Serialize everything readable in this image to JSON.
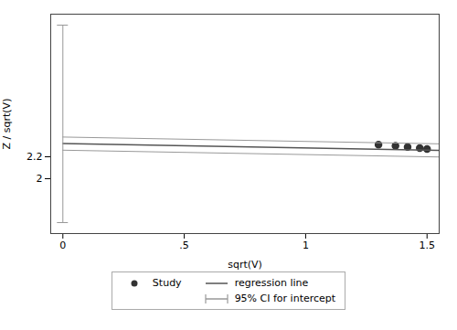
{
  "chart_data": {
    "type": "scatter",
    "xlabel": "sqrt(V)",
    "ylabel": "Z / sqrt(V)",
    "xlim": [
      -0.05,
      1.55
    ],
    "ylim": [
      1.5,
      3.5
    ],
    "xticks": [
      0,
      {
        "value": 0.5,
        "label": ".5"
      },
      1,
      1.5
    ],
    "yticks": [
      2,
      2.2
    ],
    "grid": false,
    "series": [
      {
        "name": "Study",
        "type": "scatter",
        "marker": "circle",
        "color": "#333333",
        "x": [
          1.3,
          1.37,
          1.42,
          1.47,
          1.5
        ],
        "values": [
          2.31,
          2.3,
          2.29,
          2.28,
          2.27
        ]
      },
      {
        "name": "regression line",
        "type": "line",
        "color": "#555555",
        "x": [
          0,
          1.55
        ],
        "values": [
          2.32,
          2.258
        ]
      },
      {
        "type": "line",
        "color": "#999999",
        "x": [
          0,
          1.55
        ],
        "values": [
          2.38,
          2.318
        ]
      },
      {
        "type": "line",
        "color": "#999999",
        "x": [
          0,
          1.55
        ],
        "values": [
          2.26,
          2.198
        ]
      },
      {
        "name": "95% CI for intercept",
        "type": "interval",
        "color": "#999999",
        "x": [
          0
        ],
        "low": [
          1.6
        ],
        "high": [
          3.4
        ]
      }
    ]
  }
}
